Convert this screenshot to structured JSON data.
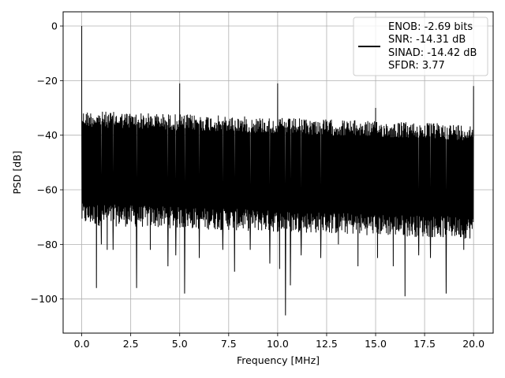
{
  "chart_data": {
    "type": "line",
    "title": "",
    "xlabel": "Frequency [MHz]",
    "ylabel": "PSD [dB]",
    "xlim": [
      -0.95,
      21.0
    ],
    "ylim": [
      -112.5,
      5.2
    ],
    "x_ticks": [
      0.0,
      2.5,
      5.0,
      7.5,
      10.0,
      12.5,
      15.0,
      17.5,
      20.0
    ],
    "x_tick_labels": [
      "0.0",
      "2.5",
      "5.0",
      "7.5",
      "10.0",
      "12.5",
      "15.0",
      "17.5",
      "20.0"
    ],
    "y_ticks": [
      0,
      -20,
      -40,
      -60,
      -80,
      -100
    ],
    "y_tick_labels": [
      "0",
      "−20",
      "−40",
      "−60",
      "−80",
      "−100"
    ],
    "grid": true,
    "legend_position": "top-right",
    "legend_lines": [
      "ENOB: -2.69 bits",
      "SNR: -14.31 dB",
      "SINAD: -14.42 dB",
      "SFDR: 3.77"
    ],
    "series_color": "#000000",
    "frequency_range": [
      0,
      20
    ],
    "noise_floor": {
      "upper_start": -31,
      "upper_end": -36,
      "lower_start": -70,
      "lower_end": -75
    },
    "spikes": [
      {
        "x": 0.0,
        "y": 0
      },
      {
        "x": 5.0,
        "y": -21
      },
      {
        "x": 10.0,
        "y": -21
      },
      {
        "x": 15.0,
        "y": -30
      },
      {
        "x": 20.0,
        "y": -22
      }
    ],
    "dips": [
      {
        "x": 0.75,
        "y": -96
      },
      {
        "x": 1.0,
        "y": -80
      },
      {
        "x": 1.3,
        "y": -82
      },
      {
        "x": 1.6,
        "y": -82
      },
      {
        "x": 2.8,
        "y": -96
      },
      {
        "x": 3.5,
        "y": -82
      },
      {
        "x": 4.4,
        "y": -88
      },
      {
        "x": 4.8,
        "y": -84
      },
      {
        "x": 5.25,
        "y": -98
      },
      {
        "x": 6.0,
        "y": -85
      },
      {
        "x": 7.2,
        "y": -82
      },
      {
        "x": 7.8,
        "y": -90
      },
      {
        "x": 8.6,
        "y": -82
      },
      {
        "x": 9.6,
        "y": -87
      },
      {
        "x": 10.1,
        "y": -89
      },
      {
        "x": 10.4,
        "y": -106
      },
      {
        "x": 10.65,
        "y": -95
      },
      {
        "x": 11.2,
        "y": -84
      },
      {
        "x": 12.2,
        "y": -85
      },
      {
        "x": 13.1,
        "y": -80
      },
      {
        "x": 14.1,
        "y": -88
      },
      {
        "x": 15.1,
        "y": -85
      },
      {
        "x": 15.9,
        "y": -88
      },
      {
        "x": 16.5,
        "y": -99
      },
      {
        "x": 17.2,
        "y": -84
      },
      {
        "x": 17.8,
        "y": -85
      },
      {
        "x": 18.6,
        "y": -98
      },
      {
        "x": 19.5,
        "y": -82
      }
    ]
  }
}
